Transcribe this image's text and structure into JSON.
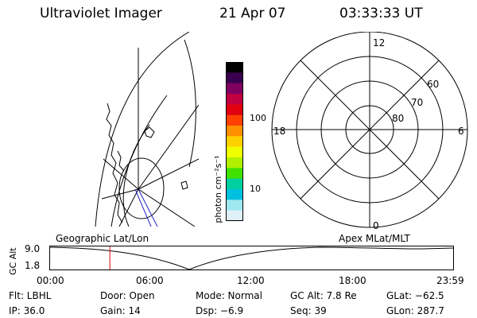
{
  "header": {
    "instrument": "Ultraviolet Imager",
    "date": "21 Apr 07",
    "time": "03:33:33 UT"
  },
  "colorbar": {
    "unit_label": "photon cm⁻²s⁻¹",
    "ticks": [
      "100",
      "10"
    ],
    "colors": [
      "#000000",
      "#3a0050",
      "#800060",
      "#c00040",
      "#e00010",
      "#ff4000",
      "#ff9000",
      "#ffd000",
      "#f0ff00",
      "#b0f000",
      "#40e000",
      "#00d0a0",
      "#00c0e0",
      "#a0e8f0",
      "#e0f0f8"
    ]
  },
  "map_left": {
    "label": "Geographic Lat/Lon"
  },
  "map_right": {
    "label": "Apex  MLat/MLT",
    "mlt_labels": {
      "top": "12",
      "left": "18",
      "right": "6",
      "bottom": "0"
    },
    "lat_labels": [
      "60",
      "70",
      "80"
    ]
  },
  "orbit": {
    "ylabel": "GC Alt",
    "yticks": [
      "9.0",
      "1.8"
    ],
    "xticks": [
      "00:00",
      "06:00",
      "12:00",
      "18:00",
      "23:59"
    ],
    "current_time_fraction": 0.1483
  },
  "status": {
    "filter": "Flt: LBHL",
    "door": "Door: Open",
    "mode": "Mode: Normal",
    "gc_alt": "GC Alt: 7.8 Re",
    "glat": "GLat: −62.5",
    "ip": "IP: 36.0",
    "gain": "Gain: 14",
    "dsp": "Dsp:    −6.9",
    "seq": "Seq: 39",
    "glon": "GLon: 287.7"
  }
}
